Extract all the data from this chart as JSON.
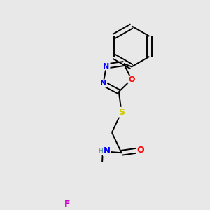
{
  "bg_color": "#e8e8e8",
  "bond_color": "#000000",
  "atom_colors": {
    "N": "#0000ff",
    "O": "#ff0000",
    "S": "#cccc00",
    "F": "#cc00cc",
    "C": "#000000",
    "H": "#6699aa"
  }
}
